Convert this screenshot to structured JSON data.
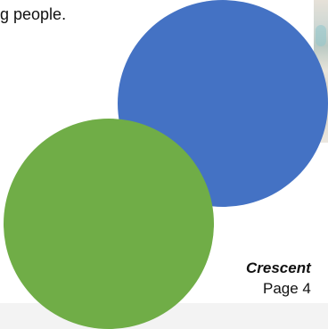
{
  "document": {
    "top_text": "g people.",
    "footer": {
      "title": "Crescent",
      "page": "Page 4"
    }
  },
  "shapes": {
    "blue_circle_color": "#4472c4",
    "green_circle_color": "#70ad47"
  }
}
